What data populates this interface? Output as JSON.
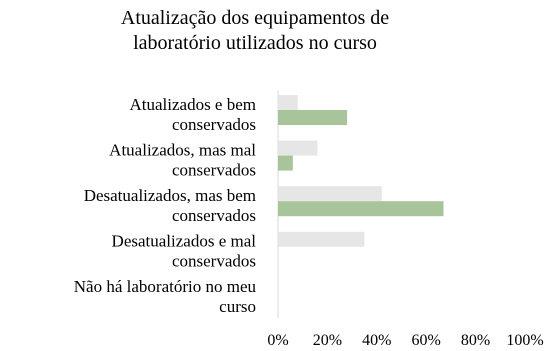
{
  "chart_data": {
    "type": "bar",
    "orientation": "horizontal",
    "title": [
      "Atualização dos equipamentos de",
      "laboratório utilizados no curso"
    ],
    "categories": [
      [
        "Atualizados e bem",
        "conservados"
      ],
      [
        "Atualizados, mas mal",
        "conservados"
      ],
      [
        "Desatualizados, mas bem",
        "conservados"
      ],
      [
        "Desatualizados e mal",
        "conservados"
      ],
      [
        "Não há laboratório no meu",
        "curso"
      ]
    ],
    "series": [
      {
        "values": [
          8,
          16,
          42,
          35,
          0
        ],
        "color": "#e6e6e6"
      },
      {
        "values": [
          28,
          6,
          67,
          0,
          0
        ],
        "color": "#a8c49a"
      }
    ],
    "xlim": [
      0,
      100
    ],
    "x_ticks": [
      "0%",
      "20%",
      "40%",
      "60%",
      "80%",
      "100%"
    ],
    "grid": false,
    "legend": "none"
  }
}
